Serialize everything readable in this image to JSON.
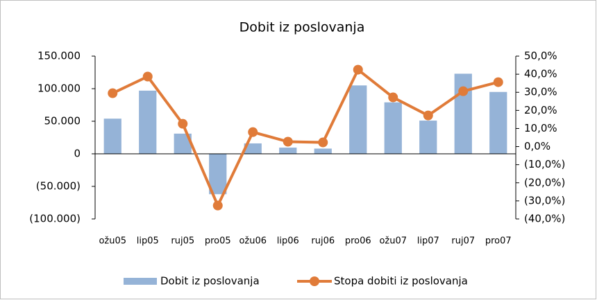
{
  "chart_data": {
    "type": "combo",
    "title": "Dobit iz poslovanja",
    "categories": [
      "ožu05",
      "lip05",
      "ruj05",
      "pro05",
      "ožu06",
      "lip06",
      "ruj06",
      "pro06",
      "ožu07",
      "lip07",
      "ruj07",
      "pro07"
    ],
    "series": [
      {
        "name": "Dobit iz poslovanja",
        "type": "bar",
        "color": "#95b3d7",
        "values": [
          54000,
          97000,
          31000,
          -62000,
          16000,
          9500,
          8000,
          105000,
          79000,
          51000,
          123000,
          95000
        ]
      },
      {
        "name": "Stopa dobiti iz poslovanja",
        "type": "line",
        "axis": "y2",
        "color": "#e07b39",
        "values": [
          29.5,
          38.7,
          12.6,
          -32.6,
          8.0,
          2.7,
          2.3,
          42.5,
          27.2,
          17.2,
          30.6,
          35.6
        ]
      }
    ],
    "ylim": [
      -100000,
      150000
    ],
    "yticks": [
      {
        "value": -100000,
        "label": "(100.000)"
      },
      {
        "value": -50000,
        "label": "(50.000)"
      },
      0,
      {
        "value": 50000,
        "label": "50.000"
      },
      {
        "value": 100000,
        "label": "100.000"
      },
      {
        "value": 150000,
        "label": "150.000"
      }
    ],
    "y2lim": [
      -40,
      50
    ],
    "y2ticks": [
      {
        "value": -40,
        "label": "(40,0%)"
      },
      {
        "value": -30,
        "label": "(30,0%)"
      },
      {
        "value": -20,
        "label": "(20,0%)"
      },
      {
        "value": -10,
        "label": "(10,0%)"
      },
      {
        "value": 0,
        "label": "0,0%"
      },
      {
        "value": 10,
        "label": "10,0%"
      },
      {
        "value": 20,
        "label": "20,0%"
      },
      {
        "value": 30,
        "label": "30,0%"
      },
      {
        "value": 40,
        "label": "40,0%"
      },
      {
        "value": 50,
        "label": "50,0%"
      }
    ],
    "legend": "bottom"
  }
}
